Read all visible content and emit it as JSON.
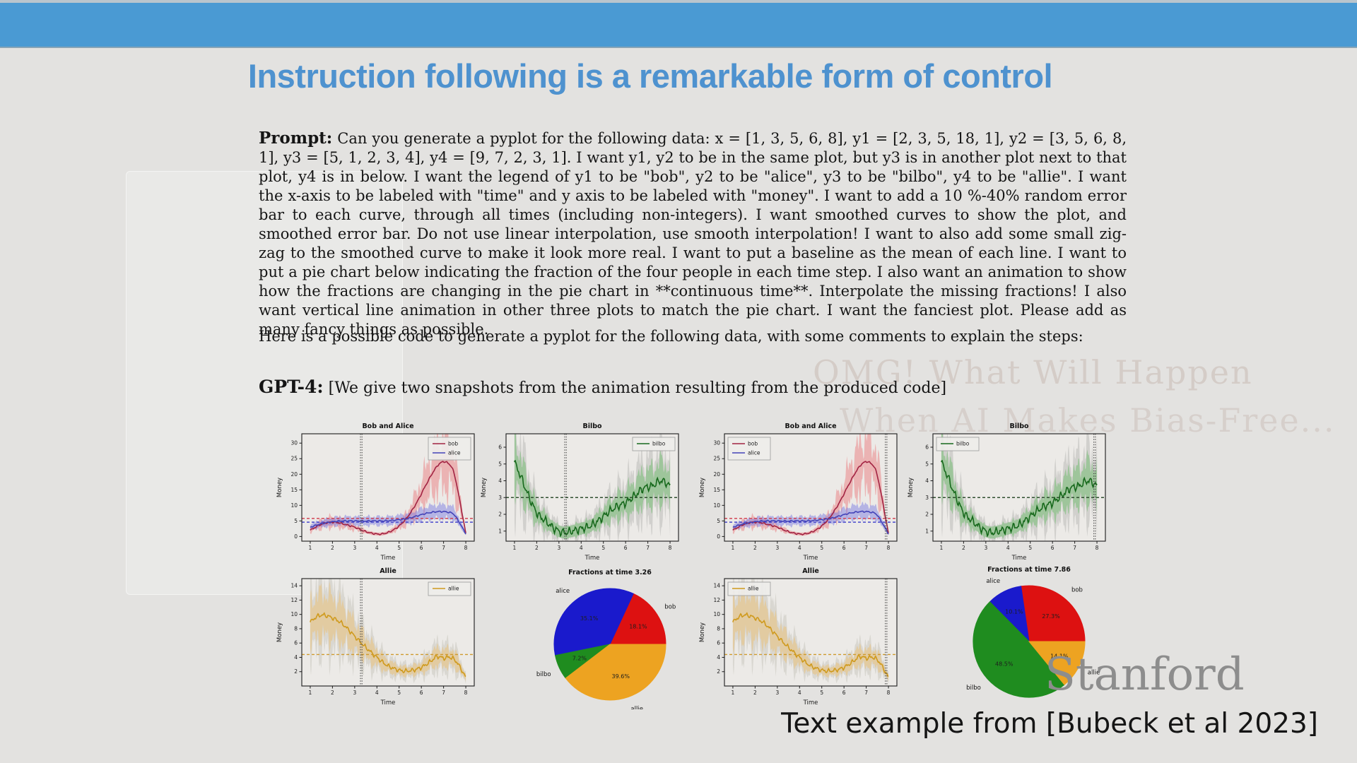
{
  "slide": {
    "title": "Instruction following is a remarkable form of control",
    "prompt_label": "Prompt:",
    "prompt_text": " Can you generate a pyplot for the following data: x = [1, 3, 5, 6, 8], y1 = [2, 3, 5, 18, 1], y2 = [3, 5, 6, 8, 1], y3 = [5, 1, 2, 3, 4], y4 = [9, 7, 2, 3, 1]. I want y1, y2 to be in the same plot, but y3 is in another plot next to that plot, y4 is in below. I want the legend of y1 to be \"bob\", y2 to be \"alice\", y3 to be \"bilbo\", y4 to be \"allie\". I want the x-axis to be labeled with \"time\" and y axis to be labeled with \"money\". I want to add a 10 %-40% random error bar to each curve, through all times (including non-integers). I want smoothed curves to show the plot, and smoothed error bar. Do not use linear interpolation, use smooth interpolation! I want to also add some small zig-zag to the smoothed curve to make it look more real. I want to put a baseline as the mean of each line. I want to put a pie chart below indicating the fraction of the four people in each time step. I also want an animation to show how the fractions are changing in the pie chart in **continuous time**. Interpolate the missing fractions! I also want vertical line animation in other three plots to match the pie chart. I want the fanciest plot. Please add as many fancy things as possible.",
    "interlude_text": "Here is a possible code to generate a pyplot for the following data, with some comments to explain the steps:",
    "gpt4_label": "GPT-4:",
    "gpt4_text": " [We give two snapshots from the animation resulting from the produced code]",
    "ghost_line1": "OMG! What Will Happen",
    "ghost_line2": "When AI Makes Bias-Free...",
    "watermark": "Stanford",
    "citation": "Text example from [Bubeck et al 2023]",
    "colors": {
      "top_bar": "#4a9ad3",
      "title": "#4e92cf",
      "background": "#e3e2e0"
    }
  },
  "chart_data": [
    {
      "id": "bobalice1",
      "type": "line",
      "title": "Bob and Alice",
      "xlabel": "Time",
      "ylabel": "Money",
      "xlim": [
        0.62,
        8.38
      ],
      "ylim": [
        -1.5,
        33
      ],
      "xticks": [
        1,
        2,
        3,
        4,
        5,
        6,
        7,
        8
      ],
      "yticks": [
        0,
        5,
        10,
        15,
        20,
        25,
        30
      ],
      "vline": 3.26,
      "legend_pos": "ne",
      "baselines": [
        {
          "y": 5.8,
          "color": "#d03848"
        },
        {
          "y": 4.6,
          "color": "#4848cc"
        }
      ],
      "series": [
        {
          "name": "bob",
          "color": "#a22342",
          "jitter": 0.3,
          "spike": 1.1,
          "min_band": 0.5,
          "bands": [
            {
              "color": "rgba(233,103,108,0.42)",
              "scale": 0.33
            }
          ],
          "x": [
            1,
            1.4,
            1.8,
            2.2,
            2.6,
            3,
            3.4,
            3.8,
            4.2,
            4.6,
            5,
            5.4,
            5.8,
            6.2,
            6.6,
            6.9,
            7.2,
            7.5,
            8
          ],
          "y": [
            2,
            3.6,
            4.5,
            4.5,
            3.8,
            3.0,
            1.8,
            1.0,
            0.8,
            1.6,
            3.4,
            6.5,
            11,
            16.5,
            21.5,
            23.8,
            23.5,
            19.5,
            1
          ]
        },
        {
          "name": "alice",
          "color": "#4343b8",
          "jitter": 0.25,
          "spike": 0.6,
          "min_band": 0.4,
          "bands": [
            {
              "color": "rgba(125,125,225,0.5)",
              "scale": 0.28
            }
          ],
          "x": [
            1,
            1.4,
            1.8,
            2.2,
            2.6,
            3,
            3.4,
            3.8,
            4.2,
            4.6,
            5,
            5.4,
            5.8,
            6.2,
            6.6,
            6.9,
            7.2,
            7.5,
            8
          ],
          "y": [
            3,
            3.9,
            4.5,
            4.9,
            5.0,
            5.0,
            4.95,
            5.0,
            5.0,
            5.1,
            5.4,
            5.8,
            6.6,
            7.4,
            7.9,
            8.0,
            7.8,
            6.8,
            0.9
          ]
        }
      ]
    },
    {
      "id": "bilbo1",
      "type": "line",
      "title": "Bilbo",
      "xlabel": "Time",
      "ylabel": "Money",
      "xlim": [
        0.62,
        8.38
      ],
      "ylim": [
        0.4,
        6.8
      ],
      "xticks": [
        1,
        2,
        3,
        4,
        5,
        6,
        7,
        8
      ],
      "yticks": [
        1,
        2,
        3,
        4,
        5,
        6
      ],
      "vline": 3.26,
      "legend_pos": "ne",
      "baselines": [
        {
          "y": 3.0,
          "color": "#2f4f2f"
        }
      ],
      "series": [
        {
          "name": "bilbo",
          "color": "#17691c",
          "jitter": 0.3,
          "spike": 0.9,
          "min_band": 0.35,
          "bands": [
            {
              "color": "rgba(140,140,140,0.28)",
              "scale": 0.5
            },
            {
              "color": "rgba(95,185,95,0.45)",
              "scale": 0.28
            }
          ],
          "x": [
            1,
            1.3,
            1.6,
            2,
            2.4,
            2.8,
            3.2,
            3.6,
            4,
            4.4,
            4.8,
            5.2,
            5.6,
            6,
            6.4,
            6.8,
            7.2,
            7.6,
            8
          ],
          "y": [
            5.1,
            4.2,
            3.2,
            2.1,
            1.6,
            1.15,
            0.92,
            1.0,
            1.15,
            1.3,
            1.65,
            2.1,
            2.45,
            2.7,
            3.1,
            3.55,
            3.7,
            4.0,
            3.7
          ]
        }
      ]
    },
    {
      "id": "allie1",
      "type": "line",
      "title": "Allie",
      "xlabel": "Time",
      "ylabel": "Money",
      "xlim": [
        0.62,
        8.38
      ],
      "ylim": [
        0,
        15
      ],
      "xticks": [
        1,
        2,
        3,
        4,
        5,
        6,
        7,
        8
      ],
      "yticks": [
        2,
        4,
        6,
        8,
        10,
        12,
        14
      ],
      "vline": 3.26,
      "legend_pos": "ne",
      "baselines": [
        {
          "y": 4.4,
          "color": "#cf9a2e"
        }
      ],
      "series": [
        {
          "name": "allie",
          "color": "#cf9a1d",
          "jitter": 0.35,
          "spike": 0.8,
          "min_band": 0.4,
          "bands": [
            {
              "color": "rgba(150,150,130,0.22)",
              "scale": 0.5
            },
            {
              "color": "rgba(240,185,90,0.4)",
              "scale": 0.3
            }
          ],
          "x": [
            1,
            1.3,
            1.6,
            2,
            2.4,
            2.8,
            3.2,
            3.6,
            4,
            4.4,
            4.8,
            5.2,
            5.6,
            6,
            6.4,
            6.7,
            7,
            7.3,
            7.6,
            8
          ],
          "y": [
            8.9,
            9.7,
            9.9,
            9.5,
            8.8,
            7.6,
            6.3,
            5.1,
            4.0,
            3.0,
            2.4,
            2.1,
            2.2,
            2.6,
            3.4,
            4.1,
            3.9,
            4.0,
            3.3,
            1.2
          ]
        }
      ]
    },
    {
      "id": "pie1",
      "type": "pie",
      "title": "Fractions at time 3.26",
      "start_angle": 0,
      "direction": "ccw",
      "slices": [
        {
          "name": "bob",
          "value": 18.1,
          "label": "18.1%",
          "color": "#dd1111"
        },
        {
          "name": "alice",
          "value": 35.1,
          "label": "35.1%",
          "color": "#1a1acc"
        },
        {
          "name": "bilbo",
          "value": 7.2,
          "label": "7.2%",
          "color": "#1f8c1f"
        },
        {
          "name": "allie",
          "value": 39.6,
          "label": "39.6%",
          "color": "#eda321"
        }
      ]
    },
    {
      "id": "bobalice2",
      "clone_of": "bobalice1",
      "vline": 7.86,
      "legend_pos": "nw"
    },
    {
      "id": "bilbo2",
      "clone_of": "bilbo1",
      "vline": 7.86,
      "legend_pos": "nw"
    },
    {
      "id": "allie2",
      "clone_of": "allie1",
      "vline": 7.86,
      "legend_pos": "nw"
    },
    {
      "id": "pie2",
      "type": "pie",
      "title": "Fractions at time 7.86",
      "start_angle": 0,
      "direction": "ccw",
      "slices": [
        {
          "name": "bob",
          "value": 27.3,
          "label": "27.3%",
          "color": "#dd1111"
        },
        {
          "name": "alice",
          "value": 10.1,
          "label": "10.1%",
          "color": "#1a1acc"
        },
        {
          "name": "bilbo",
          "value": 48.5,
          "label": "48.5%",
          "color": "#1f8c1f"
        },
        {
          "name": "allie",
          "value": 14.1,
          "label": "14.1%",
          "color": "#eda321"
        }
      ]
    }
  ]
}
